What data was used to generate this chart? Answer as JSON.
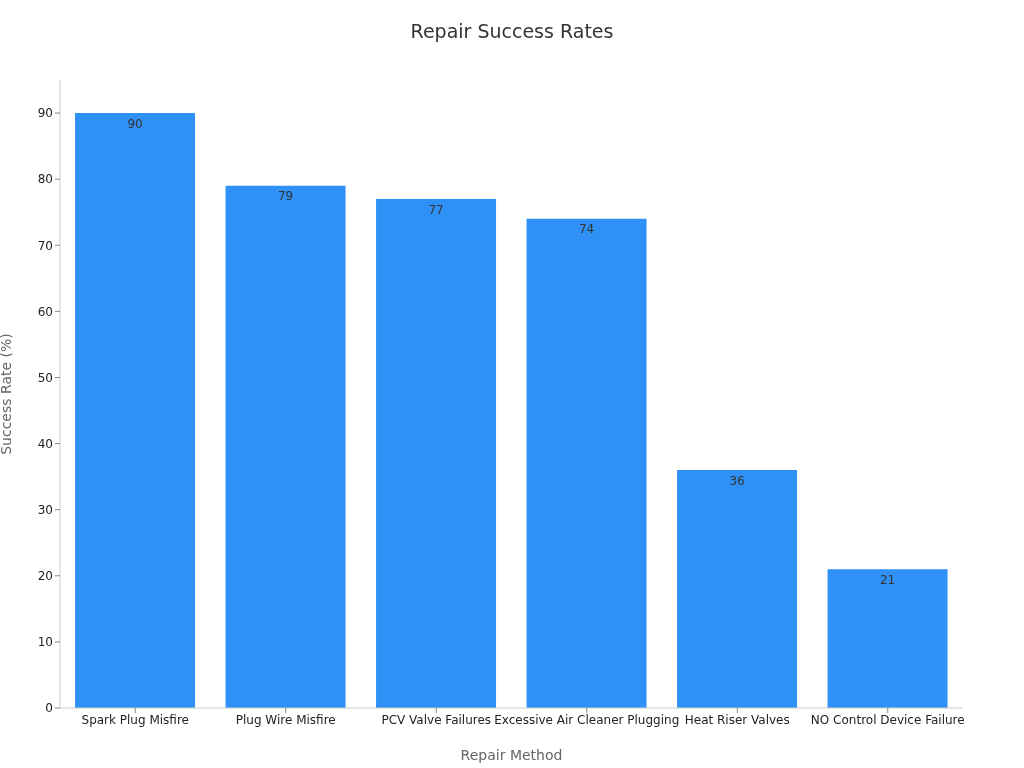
{
  "chart_data": {
    "type": "bar",
    "title": "Repair Success Rates",
    "xlabel": "Repair Method",
    "ylabel": "Success Rate (%)",
    "categories": [
      "Spark Plug Misfire",
      "Plug Wire Misfire",
      "PCV Valve Failures",
      "Excessive Air Cleaner Plugging",
      "Heat Riser Valves",
      "NO Control Device Failure"
    ],
    "values": [
      90,
      79,
      77,
      74,
      36,
      21
    ],
    "color": "#2f91f5",
    "ylim": [
      0,
      95
    ],
    "yticks": [
      0,
      10,
      20,
      30,
      40,
      50,
      60,
      70,
      80,
      90
    ],
    "data_labels": true
  }
}
